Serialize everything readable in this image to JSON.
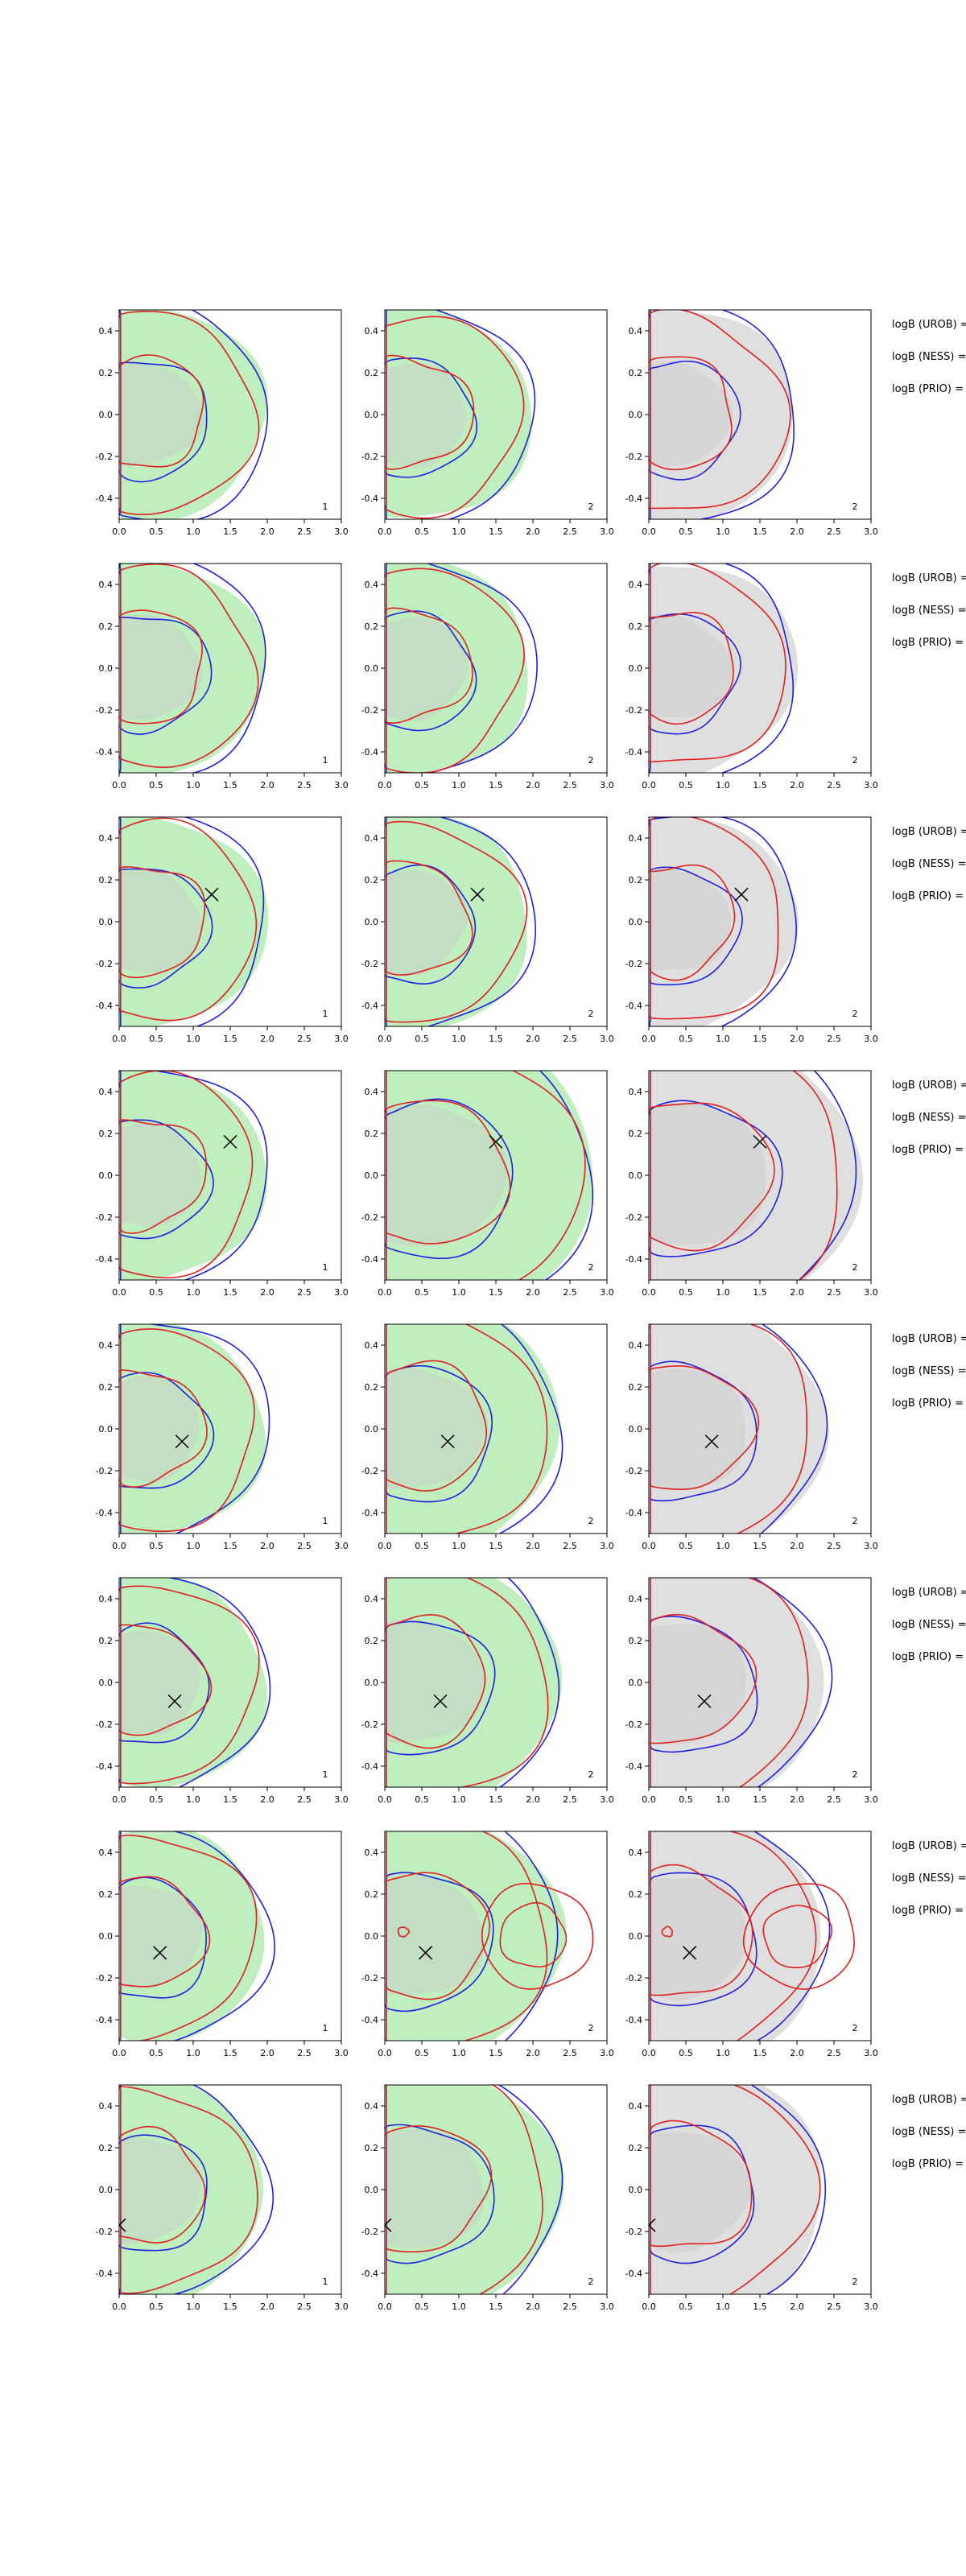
{
  "colors": {
    "green_fill": "#b8ecb8",
    "gray_fill": "#dcdcdc",
    "blue": "#1f1fe0",
    "red": "#e01f1f",
    "axis": "#000000",
    "background": "#ffffff"
  },
  "chart_data": {
    "type": "contour-grid",
    "rows": 8,
    "cols": 3,
    "xlim": [
      0.0,
      3.0
    ],
    "ylim": [
      -0.5,
      0.5
    ],
    "xticks": [
      "0.0",
      "0.5",
      "1.0",
      "1.5",
      "2.0",
      "2.5",
      "3.0"
    ],
    "yticks": [
      "-0.4",
      "-0.2",
      "0.0",
      "0.2",
      "0.4"
    ],
    "panel_labels": [
      "1",
      "2",
      "2"
    ],
    "side_labels": [
      "logB (UROB) =",
      "logB (NESS) =",
      "logB (PRIO) ="
    ],
    "markers": [
      null,
      null,
      {
        "x": 1.25,
        "y": 0.13
      },
      {
        "x": 1.5,
        "y": 0.16
      },
      {
        "x": 0.85,
        "y": -0.06
      },
      {
        "x": 0.75,
        "y": -0.09
      },
      {
        "x": 0.55,
        "y": -0.08
      },
      {
        "x": 0.0,
        "y": -0.17
      }
    ]
  }
}
